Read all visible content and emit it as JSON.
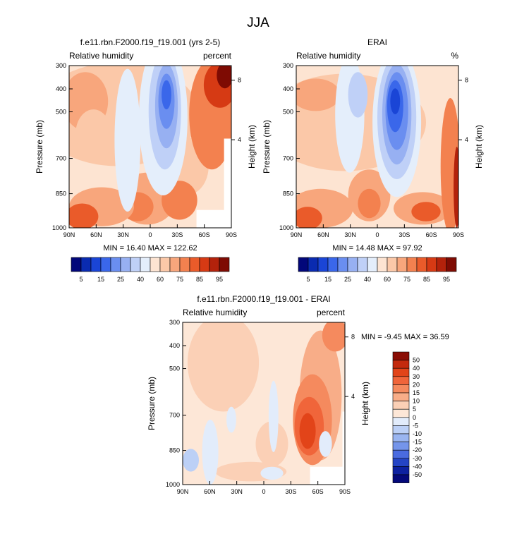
{
  "page_title": "JJA",
  "chart_data": [
    {
      "type": "heatmap",
      "title": "f.e11.rbn.F2000.f19_f19.001 (yrs 2-5)",
      "left_label": "Relative humidity",
      "right_label": "percent",
      "ylabel": "Pressure (mb)",
      "ylabel_right": "Height (km)",
      "x_ticks": [
        "90N",
        "60N",
        "30N",
        "0",
        "30S",
        "60S",
        "90S"
      ],
      "y_ticks": [
        "300",
        "400",
        "500",
        "700",
        "850",
        "1000"
      ],
      "y_ticks_right": [
        "8",
        "4"
      ],
      "stats": "MIN =  16.40   MAX = 122.62",
      "min": 16.4,
      "max": 122.62,
      "kind": "model"
    },
    {
      "type": "heatmap",
      "title": "ERAI",
      "left_label": "Relative humidity",
      "right_label": "%",
      "ylabel": "Pressure (mb)",
      "ylabel_right": "Height (km)",
      "x_ticks": [
        "90N",
        "60N",
        "30N",
        "0",
        "30S",
        "60S",
        "90S"
      ],
      "y_ticks": [
        "300",
        "400",
        "500",
        "700",
        "850",
        "1000"
      ],
      "y_ticks_right": [
        "8",
        "4"
      ],
      "stats": "MIN =  14.48   MAX =  97.92",
      "min": 14.48,
      "max": 97.92,
      "kind": "obs"
    },
    {
      "type": "heatmap",
      "title": "f.e11.rbn.F2000.f19_f19.001 - ERAI",
      "left_label": "Relative humidity",
      "right_label": "percent",
      "ylabel": "Pressure (mb)",
      "ylabel_right": "Height (km)",
      "x_ticks": [
        "90N",
        "60N",
        "30N",
        "0",
        "30S",
        "60S",
        "90S"
      ],
      "y_ticks": [
        "300",
        "400",
        "500",
        "700",
        "850",
        "1000"
      ],
      "y_ticks_right": [
        "8",
        "4"
      ],
      "stats": "MIN =  -9.45   MAX =  36.59",
      "min": -9.45,
      "max": 36.59,
      "kind": "diff"
    }
  ],
  "colorbar_abs": {
    "labels": [
      "5",
      "15",
      "25",
      "40",
      "60",
      "75",
      "85",
      "95"
    ],
    "colors": [
      "#02077a",
      "#0a2bb0",
      "#1a45d6",
      "#3a67ea",
      "#6a8ef0",
      "#97b0f2",
      "#bfd0f7",
      "#e4eefb",
      "#fde4d2",
      "#fbc8a8",
      "#f8a67c",
      "#f3814f",
      "#ea5b2a",
      "#d63a14",
      "#b3220b",
      "#7e0b03"
    ]
  },
  "colorbar_diff": {
    "labels": [
      "50",
      "40",
      "30",
      "20",
      "15",
      "10",
      "5",
      "0",
      "-5",
      "-10",
      "-15",
      "-20",
      "-30",
      "-40",
      "-50"
    ],
    "colors": [
      "#8a0d04",
      "#c32a0d",
      "#e24419",
      "#f0653a",
      "#f58a5e",
      "#f8ad88",
      "#fbd0b6",
      "#fde7d7",
      "#e2ecfb",
      "#bcd0f6",
      "#9ab5f0",
      "#7595ea",
      "#4a6be0",
      "#2444c5",
      "#0d21a0",
      "#04097a"
    ]
  }
}
